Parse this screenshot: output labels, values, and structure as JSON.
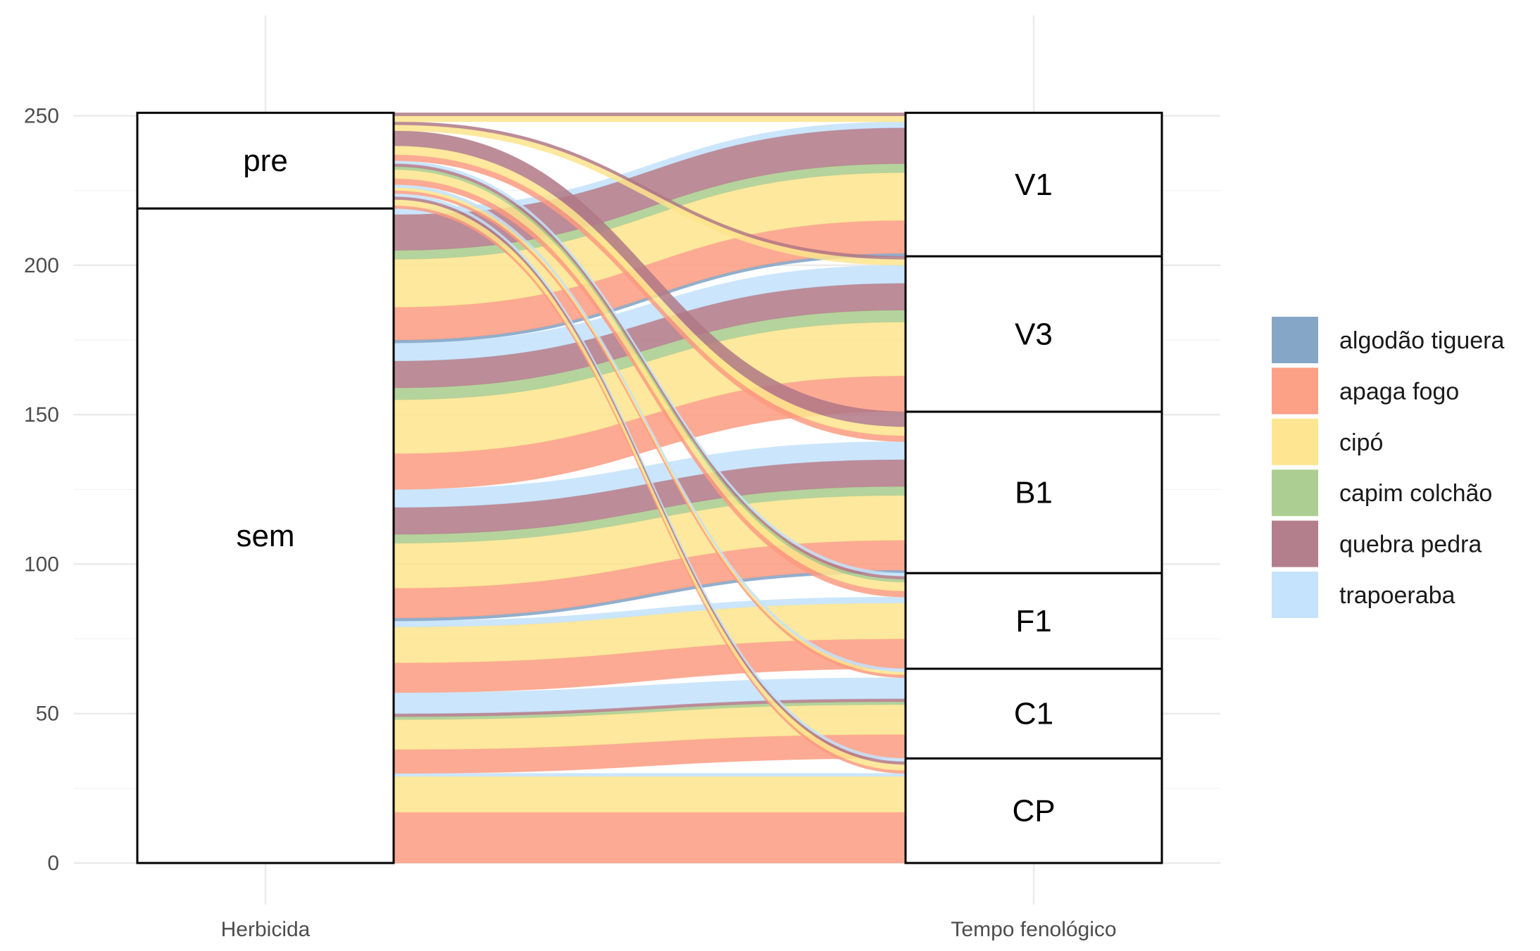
{
  "chart_data": {
    "type": "alluvial",
    "axes": [
      {
        "label": "Herbicida",
        "strata": [
          "sem",
          "pre"
        ]
      },
      {
        "label": "Tempo fenológico",
        "strata": [
          "CP",
          "C1",
          "F1",
          "B1",
          "V3",
          "V1"
        ]
      }
    ],
    "y_ticks": [
      0,
      50,
      100,
      150,
      200,
      250
    ],
    "ylim": [
      0,
      267
    ],
    "legend": {
      "position": "right",
      "entries": [
        {
          "name": "algodão tiguera",
          "color": "#7ea1c4"
        },
        {
          "name": "apaga fogo",
          "color": "#fc9b80"
        },
        {
          "name": "cipó",
          "color": "#fde48c"
        },
        {
          "name": "capim colchão",
          "color": "#a8cb8c"
        },
        {
          "name": "quebra pedra",
          "color": "#b07886"
        },
        {
          "name": "trapoeraba",
          "color": "#c2e2fc"
        }
      ]
    },
    "flows": [
      {
        "herbicida": "sem",
        "fase": "CP",
        "species": "algodão tiguera",
        "value": 0
      },
      {
        "herbicida": "sem",
        "fase": "CP",
        "species": "apaga fogo",
        "value": 17
      },
      {
        "herbicida": "sem",
        "fase": "CP",
        "species": "cipó",
        "value": 12
      },
      {
        "herbicida": "sem",
        "fase": "CP",
        "species": "capim colchão",
        "value": 0
      },
      {
        "herbicida": "sem",
        "fase": "CP",
        "species": "quebra pedra",
        "value": 0
      },
      {
        "herbicida": "sem",
        "fase": "CP",
        "species": "trapoeraba",
        "value": 1
      },
      {
        "herbicida": "sem",
        "fase": "C1",
        "species": "algodão tiguera",
        "value": 0
      },
      {
        "herbicida": "sem",
        "fase": "C1",
        "species": "apaga fogo",
        "value": 8
      },
      {
        "herbicida": "sem",
        "fase": "C1",
        "species": "cipó",
        "value": 10
      },
      {
        "herbicida": "sem",
        "fase": "C1",
        "species": "capim colchão",
        "value": 1
      },
      {
        "herbicida": "sem",
        "fase": "C1",
        "species": "quebra pedra",
        "value": 1
      },
      {
        "herbicida": "sem",
        "fase": "C1",
        "species": "trapoeraba",
        "value": 7
      },
      {
        "herbicida": "sem",
        "fase": "F1",
        "species": "algodão tiguera",
        "value": 0
      },
      {
        "herbicida": "sem",
        "fase": "F1",
        "species": "apaga fogo",
        "value": 10
      },
      {
        "herbicida": "sem",
        "fase": "F1",
        "species": "cipó",
        "value": 12
      },
      {
        "herbicida": "sem",
        "fase": "F1",
        "species": "capim colchão",
        "value": 0
      },
      {
        "herbicida": "sem",
        "fase": "F1",
        "species": "quebra pedra",
        "value": 0
      },
      {
        "herbicida": "sem",
        "fase": "F1",
        "species": "trapoeraba",
        "value": 2
      },
      {
        "herbicida": "sem",
        "fase": "B1",
        "species": "algodão tiguera",
        "value": 1
      },
      {
        "herbicida": "sem",
        "fase": "B1",
        "species": "apaga fogo",
        "value": 10
      },
      {
        "herbicida": "sem",
        "fase": "B1",
        "species": "cipó",
        "value": 15
      },
      {
        "herbicida": "sem",
        "fase": "B1",
        "species": "capim colchão",
        "value": 3
      },
      {
        "herbicida": "sem",
        "fase": "B1",
        "species": "quebra pedra",
        "value": 9
      },
      {
        "herbicida": "sem",
        "fase": "B1",
        "species": "trapoeraba",
        "value": 6
      },
      {
        "herbicida": "sem",
        "fase": "V3",
        "species": "algodão tiguera",
        "value": 0
      },
      {
        "herbicida": "sem",
        "fase": "V3",
        "species": "apaga fogo",
        "value": 12
      },
      {
        "herbicida": "sem",
        "fase": "V3",
        "species": "cipó",
        "value": 18
      },
      {
        "herbicida": "sem",
        "fase": "V3",
        "species": "capim colchão",
        "value": 4
      },
      {
        "herbicida": "sem",
        "fase": "V3",
        "species": "quebra pedra",
        "value": 9
      },
      {
        "herbicida": "sem",
        "fase": "V3",
        "species": "trapoeraba",
        "value": 6
      },
      {
        "herbicida": "sem",
        "fase": "V1",
        "species": "algodão tiguera",
        "value": 1
      },
      {
        "herbicida": "sem",
        "fase": "V1",
        "species": "apaga fogo",
        "value": 11
      },
      {
        "herbicida": "sem",
        "fase": "V1",
        "species": "cipó",
        "value": 16
      },
      {
        "herbicida": "sem",
        "fase": "V1",
        "species": "capim colchão",
        "value": 3
      },
      {
        "herbicida": "sem",
        "fase": "V1",
        "species": "quebra pedra",
        "value": 12
      },
      {
        "herbicida": "sem",
        "fase": "V1",
        "species": "trapoeraba",
        "value": 2
      },
      {
        "herbicida": "pre",
        "fase": "CP",
        "species": "apaga fogo",
        "value": 1
      },
      {
        "herbicida": "pre",
        "fase": "CP",
        "species": "cipó",
        "value": 2
      },
      {
        "herbicida": "pre",
        "fase": "CP",
        "species": "quebra pedra",
        "value": 1
      },
      {
        "herbicida": "pre",
        "fase": "CP",
        "species": "trapoeraba",
        "value": 1
      },
      {
        "herbicida": "pre",
        "fase": "C1",
        "species": "apaga fogo",
        "value": 1
      },
      {
        "herbicida": "pre",
        "fase": "C1",
        "species": "cipó",
        "value": 1
      },
      {
        "herbicida": "pre",
        "fase": "C1",
        "species": "trapoeraba",
        "value": 1
      },
      {
        "herbicida": "pre",
        "fase": "F1",
        "species": "apaga fogo",
        "value": 2
      },
      {
        "herbicida": "pre",
        "fase": "F1",
        "species": "cipó",
        "value": 3
      },
      {
        "herbicida": "pre",
        "fase": "F1",
        "species": "capim colchão",
        "value": 1
      },
      {
        "herbicida": "pre",
        "fase": "F1",
        "species": "quebra pedra",
        "value": 1
      },
      {
        "herbicida": "pre",
        "fase": "F1",
        "species": "trapoeraba",
        "value": 1
      },
      {
        "herbicida": "pre",
        "fase": "B1",
        "species": "apaga fogo",
        "value": 2
      },
      {
        "herbicida": "pre",
        "fase": "B1",
        "species": "cipó",
        "value": 3
      },
      {
        "herbicida": "pre",
        "fase": "B1",
        "species": "quebra pedra",
        "value": 5
      },
      {
        "herbicida": "pre",
        "fase": "V3",
        "species": "cipó",
        "value": 2
      },
      {
        "herbicida": "pre",
        "fase": "V3",
        "species": "quebra pedra",
        "value": 1
      },
      {
        "herbicida": "pre",
        "fase": "V1",
        "species": "cipó",
        "value": 2
      },
      {
        "herbicida": "pre",
        "fase": "V1",
        "species": "quebra pedra",
        "value": 1
      }
    ]
  }
}
